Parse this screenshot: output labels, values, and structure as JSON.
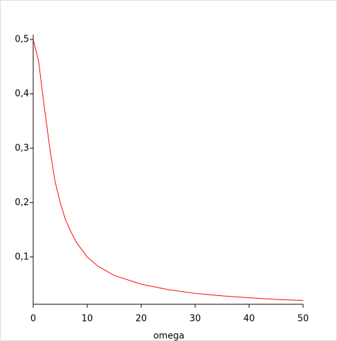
{
  "chart_data": {
    "type": "line",
    "xlabel": "omega",
    "x": [
      0,
      1,
      2,
      3,
      4,
      5,
      6,
      7,
      8,
      10,
      12,
      15,
      20,
      25,
      30,
      35,
      40,
      45,
      50
    ],
    "series": [
      {
        "color": "#ff0000",
        "values": [
          0.5,
          0.46,
          0.38,
          0.305,
          0.241,
          0.2,
          0.168,
          0.146,
          0.127,
          0.1,
          0.083,
          0.066,
          0.05,
          0.04,
          0.033,
          0.0285,
          0.025,
          0.022,
          0.02
        ]
      }
    ],
    "xlim": [
      0,
      50
    ],
    "xticks": [
      0,
      10,
      20,
      30,
      40,
      50
    ],
    "ylim": [
      0.013,
      0.509
    ],
    "yticks": [
      {
        "value": 0.1,
        "label": "0,1"
      },
      {
        "value": 0.2,
        "label": "0,2"
      },
      {
        "value": 0.3,
        "label": "0,3"
      },
      {
        "value": 0.4,
        "label": "0,4"
      },
      {
        "value": 0.5,
        "label": "0,5"
      }
    ]
  }
}
